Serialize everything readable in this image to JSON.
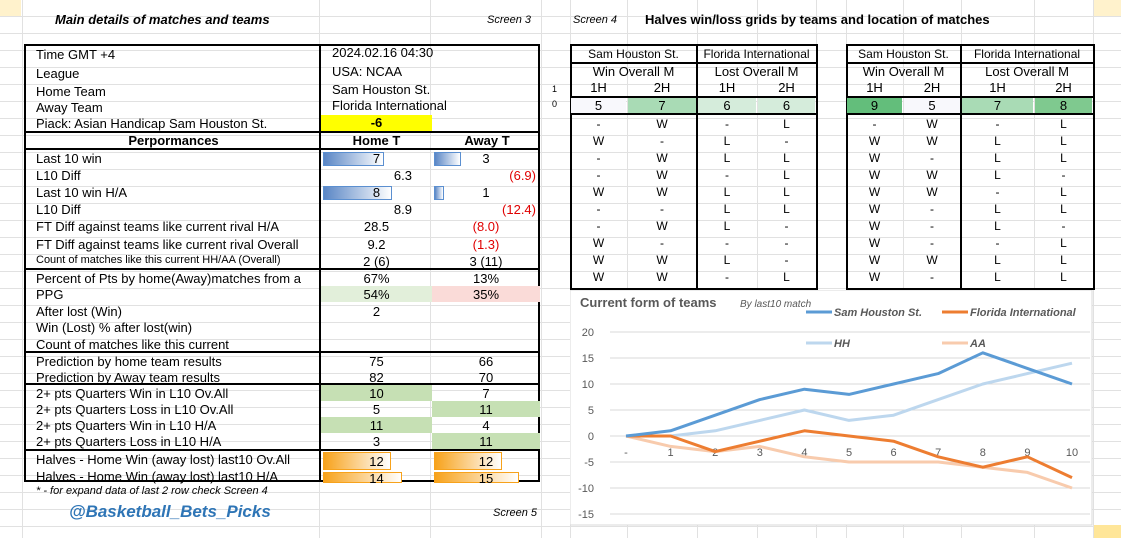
{
  "header": {
    "left_title": "Main details of matches and teams",
    "screen3": "Screen 3",
    "screen4": "Screen 4",
    "right_title": "Halves win/loss grids by teams and location of matches",
    "screen5": "Screen 5",
    "footnote": "* - for expand data of last 2 row check Screen 4",
    "handle": "@Basketball_Bets_Picks"
  },
  "info": [
    {
      "label": "Time  GMT +4",
      "value": "2024.02.16 04:30"
    },
    {
      "label": "League",
      "value": "USA: NCAA"
    },
    {
      "label": "Home Team",
      "value": "Sam Houston St."
    },
    {
      "label": "Away Team",
      "value": "Florida International"
    },
    {
      "label": "Piack: Asian Handicap Sam Houston St.",
      "value": "-6"
    }
  ],
  "perf_header": {
    "label": "Perpormances",
    "home": "Home T",
    "away": "Away T"
  },
  "rows": [
    {
      "label": "Last 10  win",
      "home": "7",
      "away": "3",
      "home_bar": 0.7,
      "away_bar": 0.3
    },
    {
      "label": "L10 Diff",
      "home": "6.3",
      "away": "(6.9)"
    },
    {
      "label": "Last 10  win H/A",
      "home": "8",
      "away": "1",
      "home_bar": 0.8,
      "away_bar": 0.1
    },
    {
      "label": "L10 Diff",
      "home": "8.9",
      "away": "(12.4)"
    },
    {
      "label": "FT Diff against teams like current rival H/A",
      "home": "28.5",
      "away": "(8.0)"
    },
    {
      "label": "FT Diff against teams like current rival Overall",
      "home": "9.2",
      "away": "(1.3)"
    },
    {
      "label": "Count of matches like this current  HH/AA (Overall)",
      "home": "2 (6)",
      "away": "3 (11)"
    },
    {
      "label": "Percent of Pts by home(Away)matches from a",
      "home": "67%",
      "away": "13%"
    },
    {
      "label": "PPG",
      "home": "54%",
      "away": "35%"
    },
    {
      "label": "After lost (Win)",
      "home": "2",
      "away": ""
    },
    {
      "label": "Win (Lost) % after lost(win)",
      "home": "",
      "away": ""
    },
    {
      "label": "Count of matches like this current",
      "home": "",
      "away": ""
    },
    {
      "label": "Prediction by home team results",
      "home": "75",
      "away": "66"
    },
    {
      "label": "Prediction by Away team results",
      "home": "82",
      "away": "70"
    },
    {
      "label": "2+ pts Quarters Win in L10 Ov.All",
      "home": "10",
      "away": "7"
    },
    {
      "label": "2+ pts Quarters Loss in L10 Ov.All",
      "home": "5",
      "away": "11"
    },
    {
      "label": "2+ pts Quarters Win in L10 H/A",
      "home": "11",
      "away": "4"
    },
    {
      "label": "2+ pts Quarters Loss in L10 H/A",
      "home": "3",
      "away": "11"
    },
    {
      "label": "Halves - Home Win  (away lost) last10 Ov.All",
      "home": "12",
      "away": "12",
      "home_bar": 0.6,
      "away_bar": 0.6
    },
    {
      "label": "Halves - Home Win  (away lost) last10 H/A",
      "home": "14",
      "away": "15",
      "home_bar": 0.7,
      "away_bar": 0.75
    }
  ],
  "row_markers": [
    "1",
    "0"
  ],
  "grids": [
    {
      "team_home": "Sam Houston St.",
      "team_away": "Florida International",
      "sub_home": "Win Overall M",
      "sub_away": "Lost Overall M",
      "halves": [
        "1H",
        "2H",
        "1H",
        "2H"
      ],
      "counts": [
        "5",
        "7",
        "6",
        "6"
      ],
      "rows": [
        [
          "-",
          "W",
          "-",
          "L"
        ],
        [
          "W",
          "-",
          "L",
          "-"
        ],
        [
          "-",
          "W",
          "L",
          "L"
        ],
        [
          "-",
          "W",
          "-",
          "L"
        ],
        [
          "W",
          "W",
          "L",
          "L"
        ],
        [
          "-",
          "-",
          "L",
          "L"
        ],
        [
          "-",
          "W",
          "L",
          "-"
        ],
        [
          "W",
          "-",
          "-",
          "-"
        ],
        [
          "W",
          "W",
          "L",
          "-"
        ],
        [
          "W",
          "W",
          "-",
          "L"
        ]
      ]
    },
    {
      "team_home": "Sam Houston St.",
      "team_away": "Florida International",
      "sub_home": "Win Overall M",
      "sub_away": "Lost Overall M",
      "halves": [
        "1H",
        "2H",
        "1H",
        "2H"
      ],
      "counts": [
        "9",
        "5",
        "7",
        "8"
      ],
      "rows": [
        [
          "-",
          "W",
          "-",
          "L"
        ],
        [
          "W",
          "W",
          "L",
          "L"
        ],
        [
          "W",
          "-",
          "L",
          "L"
        ],
        [
          "W",
          "W",
          "L",
          "-"
        ],
        [
          "W",
          "W",
          "-",
          "L"
        ],
        [
          "W",
          "-",
          "L",
          "L"
        ],
        [
          "W",
          "-",
          "L",
          "-"
        ],
        [
          "W",
          "-",
          "-",
          "L"
        ],
        [
          "W",
          "W",
          "L",
          "L"
        ],
        [
          "W",
          "-",
          "L",
          "L"
        ]
      ]
    }
  ],
  "colors": {
    "yellow": "#ffff00",
    "green_light": "#c6e0b4",
    "green_dark": "#63be7b",
    "ppg_home": "#e2efda",
    "ppg_away": "#fadbd8",
    "sh": "#5b9bd5",
    "fi": "#ed7d31",
    "hh": "#bdd7ee",
    "aa": "#f8cbad"
  },
  "chart_data": {
    "type": "line",
    "title": "Current form of  teams",
    "subtitle": "By last10 match",
    "categories": [
      "-",
      "1",
      "2",
      "3",
      "4",
      "5",
      "6",
      "7",
      "8",
      "9",
      "10"
    ],
    "ylim": [
      -15,
      20
    ],
    "yticks": [
      20,
      15,
      10,
      5,
      0,
      -5,
      -10,
      -15
    ],
    "legend": "top",
    "series": [
      {
        "name": "Sam Houston St.",
        "values": [
          0,
          1,
          4,
          7,
          9,
          8,
          10,
          12,
          16,
          13,
          10
        ]
      },
      {
        "name": "Florida International",
        "values": [
          0,
          0,
          -3,
          -1,
          1,
          0,
          -1,
          -4,
          -6,
          -4,
          -8
        ]
      },
      {
        "name": "HH",
        "values": [
          0,
          0,
          1,
          3,
          5,
          3,
          4,
          7,
          10,
          12,
          14
        ]
      },
      {
        "name": "AA",
        "values": [
          0,
          -2,
          -3,
          -2,
          -4,
          -5,
          -5,
          -5,
          -6,
          -7,
          -10
        ]
      }
    ]
  }
}
